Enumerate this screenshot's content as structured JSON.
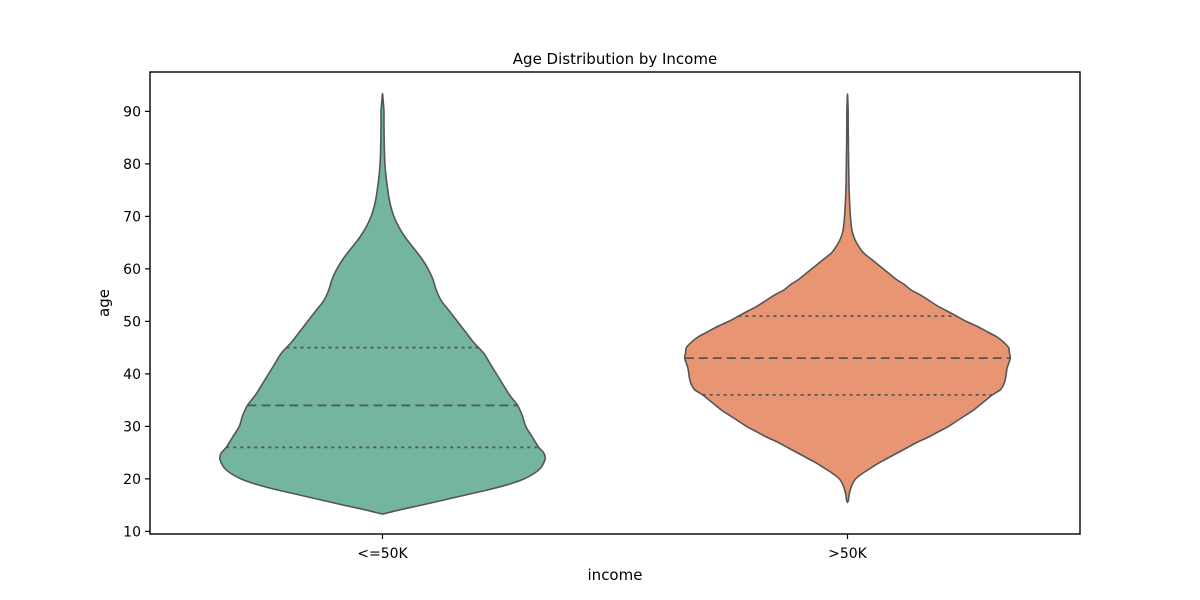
{
  "chart_data": {
    "type": "violin",
    "title": "Age Distribution by Income",
    "xlabel": "income",
    "ylabel": "age",
    "categories": [
      "<=50K",
      ">50K"
    ],
    "ylim": [
      9.5,
      97.5
    ],
    "yticks": [
      10,
      20,
      30,
      40,
      50,
      60,
      70,
      80,
      90
    ],
    "grid": false,
    "legend": "none",
    "inner": "quartile",
    "colors": {
      "<=50K": "#73b5a1",
      ">50K": "#e89574",
      "outline": "#555555"
    },
    "series": [
      {
        "category": "<=50K",
        "min": 13.3,
        "max": 93.4,
        "quartiles": {
          "q1": 26,
          "median": 34,
          "q3": 45
        },
        "density_profile": [
          [
            13.3,
            0.0
          ],
          [
            13.6,
            0.04
          ],
          [
            14.2,
            0.12
          ],
          [
            15,
            0.24
          ],
          [
            16,
            0.38
          ],
          [
            17,
            0.52
          ],
          [
            18,
            0.66
          ],
          [
            19,
            0.78
          ],
          [
            20,
            0.87
          ],
          [
            21,
            0.93
          ],
          [
            22,
            0.97
          ],
          [
            23,
            0.99
          ],
          [
            24,
            1.0
          ],
          [
            25,
            0.99
          ],
          [
            26,
            0.96
          ],
          [
            28,
            0.92
          ],
          [
            30,
            0.88
          ],
          [
            32,
            0.86
          ],
          [
            34,
            0.83
          ],
          [
            36,
            0.78
          ],
          [
            38,
            0.74
          ],
          [
            40,
            0.7
          ],
          [
            42,
            0.66
          ],
          [
            44,
            0.62
          ],
          [
            46,
            0.56
          ],
          [
            48,
            0.51
          ],
          [
            50,
            0.46
          ],
          [
            52,
            0.41
          ],
          [
            54,
            0.36
          ],
          [
            56,
            0.33
          ],
          [
            58,
            0.31
          ],
          [
            60,
            0.28
          ],
          [
            62,
            0.24
          ],
          [
            64,
            0.19
          ],
          [
            66,
            0.14
          ],
          [
            68,
            0.1
          ],
          [
            70,
            0.07
          ],
          [
            72,
            0.05
          ],
          [
            74,
            0.037
          ],
          [
            76,
            0.028
          ],
          [
            78,
            0.02
          ],
          [
            80,
            0.015
          ],
          [
            82,
            0.012
          ],
          [
            85,
            0.01
          ],
          [
            88,
            0.009
          ],
          [
            90,
            0.009
          ],
          [
            92,
            0.004
          ],
          [
            93.4,
            0.0
          ]
        ]
      },
      {
        "category": ">50K",
        "min": 15.5,
        "max": 93.3,
        "quartiles": {
          "q1": 36,
          "median": 43,
          "q3": 51
        },
        "density_profile": [
          [
            15.5,
            0.0
          ],
          [
            16,
            0.006
          ],
          [
            17,
            0.01
          ],
          [
            18,
            0.018
          ],
          [
            19,
            0.03
          ],
          [
            20,
            0.05
          ],
          [
            21,
            0.09
          ],
          [
            22,
            0.14
          ],
          [
            23,
            0.19
          ],
          [
            24,
            0.25
          ],
          [
            25,
            0.31
          ],
          [
            26,
            0.37
          ],
          [
            27,
            0.43
          ],
          [
            28,
            0.5
          ],
          [
            29,
            0.56
          ],
          [
            30,
            0.62
          ],
          [
            31,
            0.67
          ],
          [
            32,
            0.72
          ],
          [
            33,
            0.77
          ],
          [
            34,
            0.81
          ],
          [
            35,
            0.85
          ],
          [
            36,
            0.89
          ],
          [
            37,
            0.94
          ],
          [
            38,
            0.96
          ],
          [
            39,
            0.97
          ],
          [
            40,
            0.975
          ],
          [
            41,
            0.98
          ],
          [
            42,
            0.99
          ],
          [
            43,
            1.0
          ],
          [
            44,
            0.995
          ],
          [
            45,
            0.99
          ],
          [
            46,
            0.96
          ],
          [
            47,
            0.92
          ],
          [
            48,
            0.86
          ],
          [
            49,
            0.8
          ],
          [
            50,
            0.73
          ],
          [
            51,
            0.67
          ],
          [
            52,
            0.61
          ],
          [
            53,
            0.55
          ],
          [
            54,
            0.5
          ],
          [
            55,
            0.45
          ],
          [
            56,
            0.39
          ],
          [
            57,
            0.35
          ],
          [
            58,
            0.3
          ],
          [
            59,
            0.26
          ],
          [
            60,
            0.22
          ],
          [
            61,
            0.18
          ],
          [
            62,
            0.14
          ],
          [
            63,
            0.1
          ],
          [
            64,
            0.075
          ],
          [
            65,
            0.055
          ],
          [
            66,
            0.04
          ],
          [
            67,
            0.03
          ],
          [
            68,
            0.024
          ],
          [
            70,
            0.018
          ],
          [
            72,
            0.014
          ],
          [
            74,
            0.011
          ],
          [
            76,
            0.009
          ],
          [
            78,
            0.008
          ],
          [
            80,
            0.007
          ],
          [
            82,
            0.006
          ],
          [
            85,
            0.005
          ],
          [
            88,
            0.004
          ],
          [
            90,
            0.004
          ],
          [
            92,
            0.002
          ],
          [
            93.3,
            0.0
          ]
        ]
      }
    ]
  }
}
